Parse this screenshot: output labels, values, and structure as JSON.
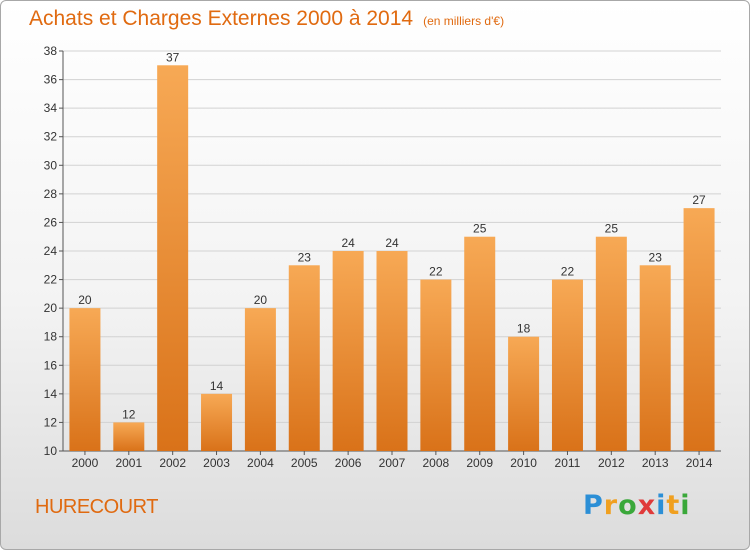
{
  "chart_data": {
    "type": "bar",
    "title": "Achats et Charges Externes 2000 à 2014",
    "subtitle": "(en milliers d'€)",
    "categories": [
      "2000",
      "2001",
      "2002",
      "2003",
      "2004",
      "2005",
      "2006",
      "2007",
      "2008",
      "2009",
      "2010",
      "2011",
      "2012",
      "2013",
      "2014"
    ],
    "values": [
      20,
      12,
      37,
      14,
      20,
      23,
      24,
      24,
      22,
      25,
      18,
      22,
      25,
      23,
      27
    ],
    "ylim": [
      10,
      38
    ],
    "yticks": [
      10,
      12,
      14,
      16,
      18,
      20,
      22,
      24,
      26,
      28,
      30,
      32,
      34,
      36,
      38
    ],
    "grid": true,
    "colors": {
      "bar_light": "#f7a955",
      "bar_dark": "#d97219"
    }
  },
  "commune": "HURECOURT",
  "logo": {
    "letters": [
      "P",
      "r",
      "o",
      "x",
      "i",
      "t",
      "i"
    ],
    "colors": [
      "#2c8fd6",
      "#f0a020",
      "#3aa83a",
      "#e03a3a",
      "#2c8fd6",
      "#f0a020",
      "#3aa83a"
    ]
  }
}
